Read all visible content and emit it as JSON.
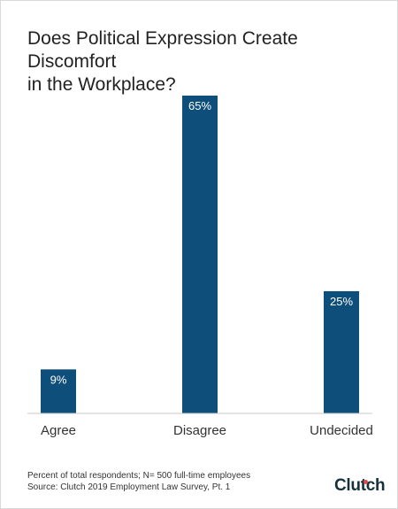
{
  "chart_data": {
    "type": "bar",
    "title_lines": [
      "Does Political Expression Create Discomfort",
      "in the Workplace?"
    ],
    "categories": [
      "Agree",
      "Disagree",
      "Undecided"
    ],
    "values": [
      9,
      65,
      25
    ],
    "value_labels": [
      "9%",
      "65%",
      "25%"
    ],
    "ylim": [
      0,
      65
    ],
    "grid": false,
    "legend": "none",
    "bar_color": "#0d4f7a"
  },
  "footnote": {
    "line1": "Percent of total respondents; N= 500 full-time employees",
    "line2": "Source: Clutch 2019 Employment Law Survey, Pt. 1"
  },
  "brand": {
    "logo_text": "Clutch",
    "accent_color": "#e6484a"
  }
}
